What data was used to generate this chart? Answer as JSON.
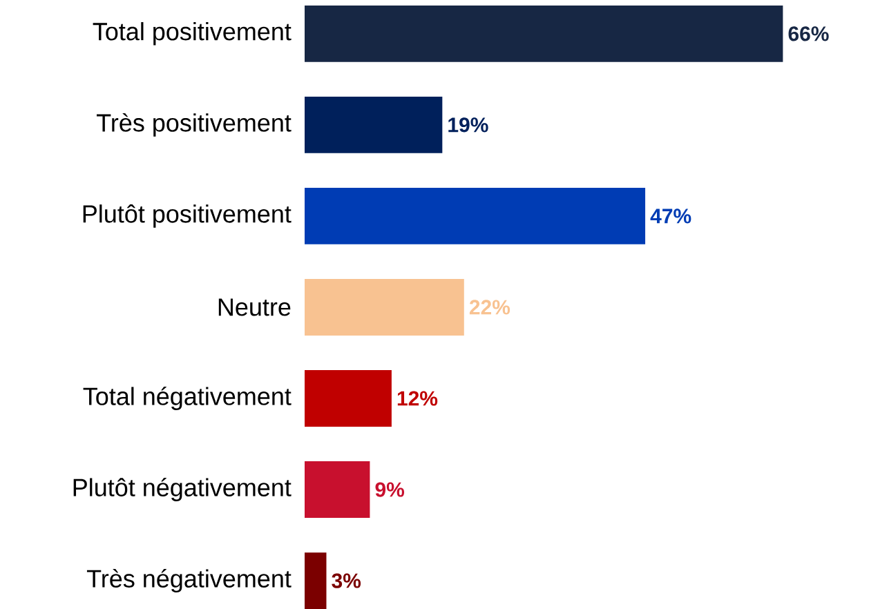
{
  "chart_data": {
    "type": "bar",
    "orientation": "horizontal",
    "categories": [
      "Total positivement",
      "Très positivement",
      "Plutôt positivement",
      "Neutre",
      "Total négativement",
      "Plutôt négativement",
      "Très négativement"
    ],
    "values": [
      66,
      19,
      47,
      22,
      12,
      9,
      3
    ],
    "colors": [
      "#172744",
      "#00205b",
      "#003cb4",
      "#f8c291",
      "#c00000",
      "#c8102e",
      "#7b0000"
    ],
    "value_labels": [
      "66%",
      "19%",
      "47%",
      "22%",
      "12%",
      "9%",
      "3%"
    ]
  }
}
